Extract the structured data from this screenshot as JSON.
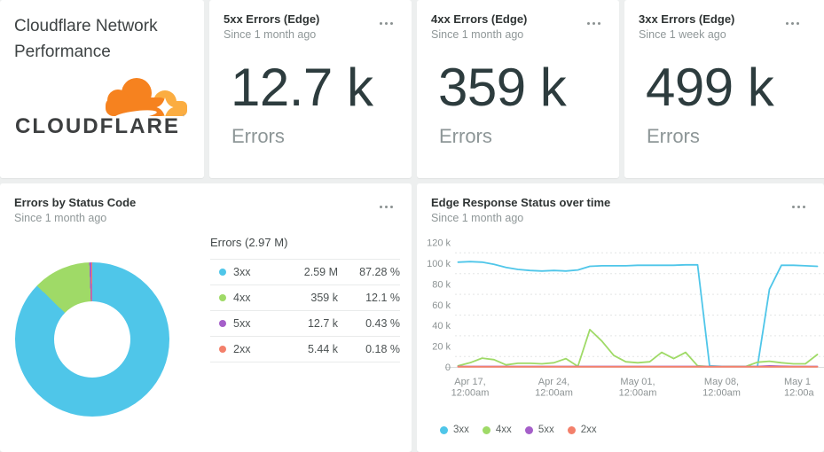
{
  "title_card": {
    "title": "Cloudflare Network Performance",
    "logo_text": "CLOUDFLARE",
    "logo_orange": "#f6821f",
    "logo_light_orange": "#fbad41",
    "logo_text_color": "#3d3f40"
  },
  "stat_cards": [
    {
      "title": "5xx Errors (Edge)",
      "subtitle": "Since 1 month ago",
      "value": "12.7 k",
      "caption": "Errors"
    },
    {
      "title": "4xx Errors (Edge)",
      "subtitle": "Since 1 month ago",
      "value": "359 k",
      "caption": "Errors"
    },
    {
      "title": "3xx Errors (Edge)",
      "subtitle": "Since 1 week ago",
      "value": "499 k",
      "caption": "Errors"
    }
  ],
  "cards": {
    "pie": {
      "subtitle": "Since 1 month ago"
    },
    "line": {
      "subtitle": "Since 1 month ago"
    }
  },
  "chart_data": [
    {
      "type": "donut",
      "title": "Errors by Status Code",
      "total_label": "Errors (2.97 M)",
      "slices": [
        {
          "label": "3xx",
          "value_label": "2.59 M",
          "percent": 87.28,
          "percent_label": "87.28 %",
          "color": "#4fc6e9"
        },
        {
          "label": "4xx",
          "value_label": "359 k",
          "percent": 12.1,
          "percent_label": "12.1 %",
          "color": "#9fda67"
        },
        {
          "label": "5xx",
          "value_label": "12.7 k",
          "percent": 0.43,
          "percent_label": "0.43 %",
          "color": "#a55fc9"
        },
        {
          "label": "2xx",
          "value_label": "5.44 k",
          "percent": 0.18,
          "percent_label": "0.18 %",
          "color": "#f3806b"
        }
      ]
    },
    {
      "type": "line",
      "title": "Edge Response Status over time",
      "x_unit": "day",
      "x_range": [
        "Apr 16",
        "May 16"
      ],
      "y_unit": "thousands (k)",
      "ylim": [
        0,
        120
      ],
      "grid": "dotted horizontal every 10k between labels",
      "legend_position": "bottom-left",
      "y_tick_values": [
        120,
        100,
        80,
        60,
        40,
        20,
        0
      ],
      "y_tick_labels": [
        "120 k",
        "100 k",
        "80 k",
        "60 k",
        "40 k",
        "20 k",
        "0"
      ],
      "y_grid_values": [
        110,
        90,
        70,
        50,
        30,
        10
      ],
      "x_tick_days": [
        1,
        8,
        15,
        22,
        29
      ],
      "x_tick_labels": [
        [
          "Apr 17,",
          "12:00am"
        ],
        [
          "Apr 24,",
          "12:00am"
        ],
        [
          "May 01,",
          "12:00am"
        ],
        [
          "May 08,",
          "12:00am"
        ],
        [
          "May 1",
          "12:00a"
        ]
      ],
      "series": [
        {
          "name": "3xx",
          "color": "#4fc6e9",
          "values_k": [
            101,
            101.5,
            101,
            99,
            96,
            94,
            93,
            92.5,
            93,
            92.5,
            93.5,
            97,
            97.5,
            97.5,
            97.5,
            98,
            98,
            98,
            98,
            98.5,
            98.5,
            1,
            0.5,
            0.4,
            0.4,
            0.5,
            75,
            98,
            98,
            97.5,
            97
          ]
        },
        {
          "name": "4xx",
          "color": "#9fda67",
          "values_k": [
            1,
            4,
            8.5,
            7,
            2,
            3.5,
            3.5,
            3,
            4,
            8,
            0.5,
            36,
            25,
            11,
            5,
            4,
            5,
            14,
            8,
            14,
            1,
            0.3,
            0.3,
            0.5,
            0.3,
            4.5,
            5.5,
            4,
            3,
            3,
            12
          ]
        },
        {
          "name": "5xx",
          "color": "#a55fc9",
          "values_k": [
            0.4,
            0.4,
            0.4,
            0.4,
            0.4,
            0.4,
            0.4,
            0.4,
            0.4,
            0.4,
            0.4,
            0.4,
            0.4,
            0.4,
            0.4,
            0.4,
            0.4,
            0.4,
            0.4,
            0.4,
            0.4,
            0.3,
            0.3,
            0.3,
            0.3,
            0.4,
            0.9,
            0.6,
            0.4,
            0.4,
            0.4
          ]
        },
        {
          "name": "2xx",
          "color": "#f3806b",
          "values_k": [
            0.2,
            0.2,
            0.2,
            0.2,
            0.2,
            0.2,
            0.2,
            0.2,
            0.2,
            0.2,
            0.2,
            0.2,
            0.2,
            0.2,
            0.2,
            0.2,
            0.2,
            0.2,
            0.2,
            0.2,
            0.2,
            0.2,
            0.2,
            0.2,
            0.2,
            0.2,
            0.2,
            0.2,
            0.2,
            0.2,
            0.2
          ]
        }
      ]
    }
  ]
}
